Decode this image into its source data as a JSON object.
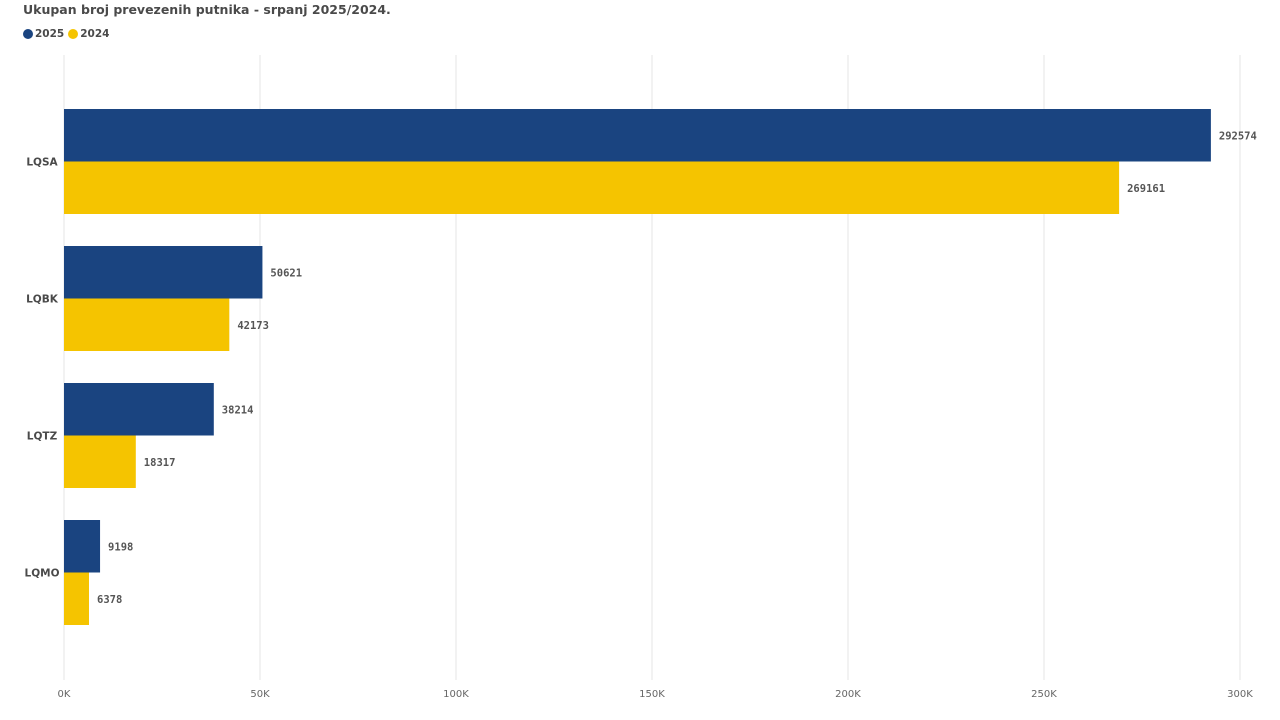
{
  "chart_data": {
    "type": "bar",
    "orientation": "horizontal",
    "title": "Ukupan broj prevezenih putnika - srpanj 2025/2024.",
    "categories": [
      "LQSA",
      "LQBK",
      "LQTZ",
      "LQMO"
    ],
    "series": [
      {
        "name": "2025",
        "color": "#1a4480",
        "values": [
          292574,
          50621,
          38214,
          9198
        ]
      },
      {
        "name": "2024",
        "color": "#f5c400",
        "values": [
          269161,
          42173,
          18317,
          6378
        ]
      }
    ],
    "xlim": [
      0,
      300000
    ],
    "xticks": [
      0,
      50000,
      100000,
      150000,
      200000,
      250000,
      300000
    ],
    "xtick_labels": [
      "0K",
      "50K",
      "100K",
      "150K",
      "200K",
      "250K",
      "300K"
    ],
    "grid": true,
    "legend_position": "top-left",
    "data_labels": true
  }
}
